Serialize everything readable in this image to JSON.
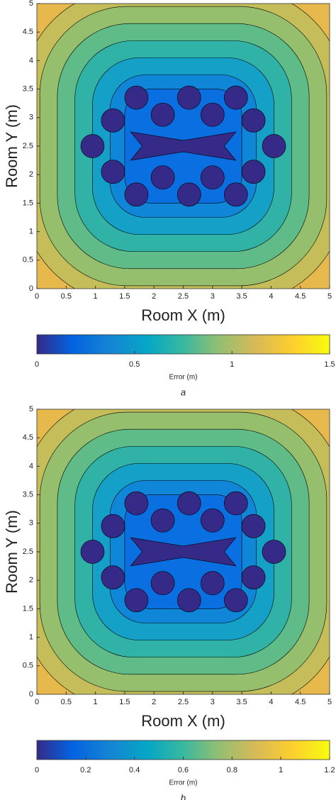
{
  "chart_data": [
    {
      "type": "contour",
      "xlabel": "Room X (m)",
      "ylabel": "Room Y (m)",
      "xlim": [
        0,
        5
      ],
      "ylim": [
        0,
        5
      ],
      "xticks": [
        0,
        0.5,
        1,
        1.5,
        2,
        2.5,
        3,
        3.5,
        4,
        4.5,
        5
      ],
      "yticks": [
        0,
        0.5,
        1,
        1.5,
        2,
        2.5,
        3,
        3.5,
        4,
        4.5,
        5
      ],
      "colorbar": {
        "label": "Error (m)",
        "clim": [
          0,
          1.5
        ],
        "ticks": [
          0,
          0.5,
          1,
          1.5
        ]
      },
      "caption": "a"
    },
    {
      "type": "contour",
      "xlabel": "Room X (m)",
      "ylabel": "Room Y (m)",
      "xlim": [
        0,
        5
      ],
      "ylim": [
        0,
        5
      ],
      "xticks": [
        0,
        0.5,
        1,
        1.5,
        2,
        2.5,
        3,
        3.5,
        4,
        4.5,
        5
      ],
      "yticks": [
        0,
        0.5,
        1,
        1.5,
        2,
        2.5,
        3,
        3.5,
        4,
        4.5,
        5
      ],
      "colorbar": {
        "label": "Error (m)",
        "clim": [
          0,
          1.2
        ],
        "ticks": [
          0,
          0.2,
          0.4,
          0.6,
          0.8,
          1,
          1.2
        ]
      },
      "caption": "b"
    }
  ]
}
